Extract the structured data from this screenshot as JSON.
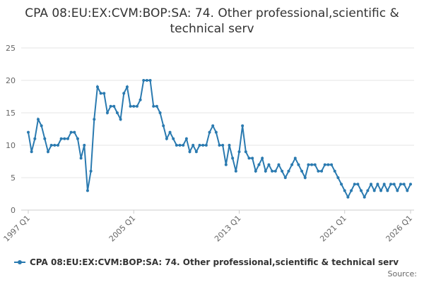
{
  "chart_data": {
    "type": "line",
    "title": "CPA 08:EU:EX:CVM:BOP:SA: 74. Other professional,scientific & technical serv",
    "source_label": "Source:",
    "categories": [
      "1997 Q1",
      null,
      null,
      null,
      null,
      null,
      null,
      null,
      null,
      null,
      null,
      null,
      null,
      null,
      null,
      null,
      null,
      null,
      null,
      null,
      null,
      null,
      null,
      null,
      null,
      null,
      null,
      null,
      null,
      null,
      null,
      null,
      "2005 Q1",
      null,
      null,
      null,
      null,
      null,
      null,
      null,
      null,
      null,
      null,
      null,
      null,
      null,
      null,
      null,
      null,
      null,
      null,
      null,
      null,
      null,
      null,
      null,
      null,
      null,
      null,
      null,
      null,
      null,
      null,
      null,
      "2013 Q1",
      null,
      null,
      null,
      null,
      null,
      null,
      null,
      null,
      null,
      null,
      null,
      null,
      null,
      null,
      null,
      null,
      null,
      null,
      null,
      null,
      null,
      null,
      null,
      null,
      null,
      null,
      null,
      null,
      null,
      null,
      null,
      "2021 Q1",
      null,
      null,
      null,
      null,
      null,
      null,
      null,
      null,
      null,
      null,
      null,
      null,
      null,
      null,
      null,
      null,
      null,
      null,
      null,
      "2026 Q1"
    ],
    "series": [
      {
        "name": "CPA 08:EU:EX:CVM:BOP:SA: 74. Other professional,scientific & technical serv",
        "color": "#2a7ab0",
        "values": [
          12,
          9,
          11,
          14,
          13,
          11,
          9,
          10,
          10,
          10,
          11,
          11,
          11,
          12,
          12,
          11,
          8,
          10,
          3,
          6,
          14,
          19,
          18,
          18,
          15,
          16,
          16,
          15,
          14,
          18,
          19,
          16,
          16,
          16,
          17,
          20,
          20,
          20,
          16,
          16,
          15,
          13,
          11,
          12,
          11,
          10,
          10,
          10,
          11,
          9,
          10,
          9,
          10,
          10,
          10,
          12,
          13,
          12,
          10,
          10,
          7,
          10,
          8,
          6,
          9,
          13,
          9,
          8,
          8,
          6,
          7,
          8,
          6,
          7,
          6,
          6,
          7,
          6,
          5,
          6,
          7,
          8,
          7,
          6,
          5,
          7,
          7,
          7,
          6,
          6,
          7,
          7,
          7,
          6,
          5,
          4,
          3,
          2,
          3,
          4,
          4,
          3,
          2,
          3,
          4,
          3,
          4,
          3,
          4,
          3,
          4,
          4,
          3,
          4,
          4,
          3,
          4
        ]
      }
    ],
    "ylim": [
      0,
      25
    ],
    "yticks": [
      0,
      5,
      10,
      15,
      20,
      25
    ],
    "grid": true
  }
}
